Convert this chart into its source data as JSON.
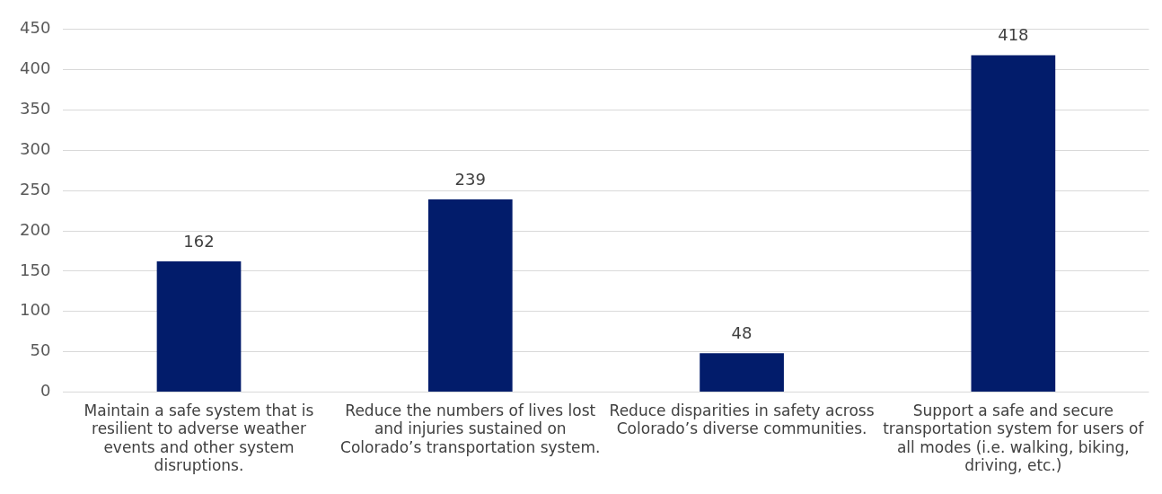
{
  "chart_data": {
    "type": "bar",
    "categories": [
      "Maintain a safe system that is resilient to adverse weather events and other system disruptions.",
      "Reduce the numbers of lives lost and injuries sustained on Colorado’s transportation system.",
      "Reduce disparities in safety across Colorado’s diverse communities.",
      "Support a safe and secure transportation system for users of all modes (i.e. walking, biking, driving, etc.)"
    ],
    "values": [
      162,
      239,
      48,
      418
    ],
    "color": "#021c6b",
    "ylim": [
      0,
      450
    ],
    "yticks": [
      0,
      50,
      100,
      150,
      200,
      250,
      300,
      350,
      400,
      450
    ],
    "grid": "y",
    "data_labels": true,
    "legend": false
  }
}
